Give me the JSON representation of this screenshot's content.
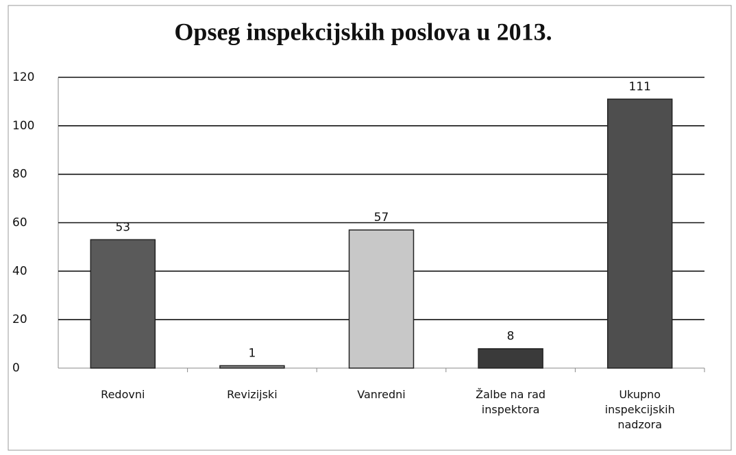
{
  "chart_data": {
    "type": "bar",
    "title": "Opseg inspekcijskih poslova u 2013.",
    "categories": [
      "Redovni",
      "Revizijski",
      "Vanredni",
      "Žalbe na rad inspektora",
      "Ukupno inspekcijskih nadzora"
    ],
    "values": [
      53,
      1,
      57,
      8,
      111
    ],
    "colors": [
      "#5a5a5a",
      "#8a8a8a",
      "#c8c8c8",
      "#3a3a3a",
      "#4e4e4e"
    ],
    "ylim": [
      0,
      120
    ],
    "yticks": [
      0,
      20,
      40,
      60,
      80,
      100,
      120
    ],
    "grid": true
  }
}
